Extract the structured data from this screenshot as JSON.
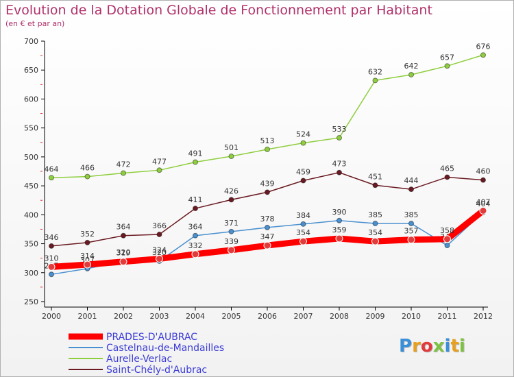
{
  "header": {
    "title": "Evolution de la Dotation Globale de Fonctionnement par Habitant",
    "subtitle": "(en € et par an)"
  },
  "brand": {
    "logo_text": "Proxiti",
    "letter_colors": [
      "#3a8fd8",
      "#e8a020",
      "#e23b3b",
      "#7dc242",
      "#3a8fd8",
      "#e8a020",
      "#7dc242"
    ]
  },
  "chart_data": {
    "type": "line",
    "title": "Evolution de la Dotation Globale de Fonctionnement par Habitant",
    "subtitle": "(en € et par an)",
    "xlabel": "",
    "ylabel": "",
    "ylim": [
      250,
      700
    ],
    "yticks": [
      250,
      300,
      350,
      400,
      450,
      500,
      550,
      600,
      650,
      700
    ],
    "categories": [
      "2000",
      "2001",
      "2002",
      "2003",
      "2004",
      "2005",
      "2006",
      "2007",
      "2008",
      "2009",
      "2010",
      "2011",
      "2012"
    ],
    "grid": false,
    "legend_position": "bottom-left",
    "series": [
      {
        "name": "Saint-Chély-d'Aubrac",
        "color": "#6b1a22",
        "values": [
          346,
          352,
          364,
          366,
          411,
          426,
          439,
          459,
          473,
          451,
          444,
          465,
          460
        ],
        "labels": [
          "346",
          "352",
          "364",
          "366",
          "411",
          "426",
          "439",
          "459",
          "473",
          "451",
          "444",
          "465",
          "460"
        ]
      },
      {
        "name": "Aurelle-Verlac",
        "color": "#8fce3e",
        "values": [
          464,
          466,
          472,
          477,
          491,
          501,
          513,
          524,
          533,
          632,
          642,
          657,
          676
        ],
        "labels": [
          "464",
          "466",
          "472",
          "477",
          "491",
          "501",
          "513",
          "524",
          "533",
          "632",
          "642",
          "657",
          "676"
        ]
      },
      {
        "name": "Castelnau-de-Mandailles",
        "color": "#4a90d0",
        "values": [
          297,
          307,
          320,
          320,
          364,
          371,
          378,
          384,
          390,
          385,
          385,
          347,
          404
        ],
        "labels": [
          "297",
          "307",
          "320",
          "320",
          "364",
          "371",
          "378",
          "384",
          "390",
          "385",
          "385",
          "347",
          "404"
        ]
      },
      {
        "name": "PRADES-D'AUBRAC",
        "color": "#ff0000",
        "values": [
          310,
          314,
          319,
          324,
          332,
          339,
          347,
          354,
          359,
          354,
          357,
          358,
          407
        ],
        "labels": [
          "310",
          "314",
          "319",
          "324",
          "332",
          "339",
          "347",
          "354",
          "359",
          "354",
          "357",
          "358",
          "407"
        ]
      }
    ],
    "legend": [
      "PRADES-D'AUBRAC",
      "Castelnau-de-Mandailles",
      "Aurelle-Verlac",
      "Saint-Chély-d'Aubrac"
    ]
  }
}
